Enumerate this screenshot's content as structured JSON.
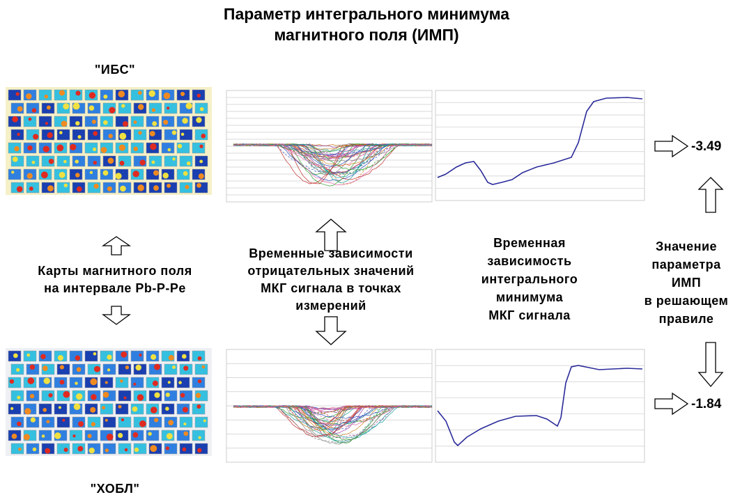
{
  "header": {
    "title_lines": [
      "Параметр интегрального минимума",
      "магнитного поля (ИМП)"
    ]
  },
  "groups": [
    {
      "label": "\"ИБС\"",
      "result": -3.49
    },
    {
      "label": "\"ХОБЛ\"",
      "result": -1.84
    }
  ],
  "captions": {
    "maps": [
      "Карты магнитного поля",
      "на интервале Pb-P-Pe"
    ],
    "curves": [
      "Временные зависимости",
      "отрицательных значений",
      "МКГ сигнала в точках",
      "измерений"
    ],
    "integral": [
      "Временная",
      "зависимость",
      "интегрального",
      "минимума",
      "МКГ сигнала"
    ],
    "parameter": [
      "Значение",
      "параметра",
      "ИМП",
      "в решающем",
      "правиле"
    ]
  }
}
